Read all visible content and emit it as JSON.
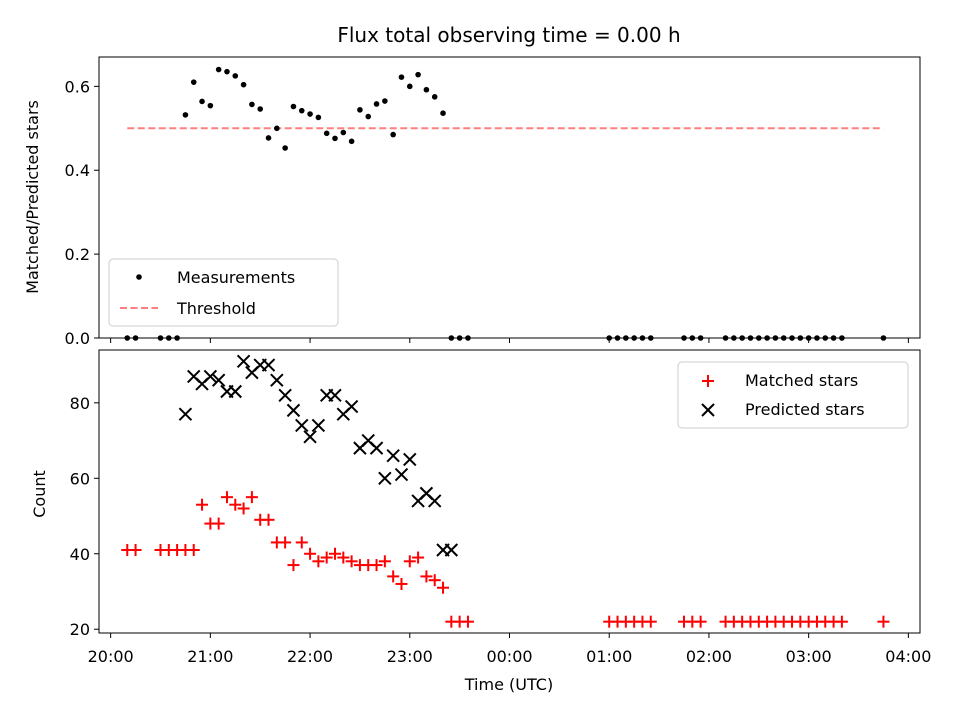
{
  "chart_data": [
    {
      "type": "scatter",
      "title": "Flux total observing time = 0.00 h",
      "xlabel": "",
      "ylabel": "Matched/Predicted stars",
      "ylim": [
        0,
        0.67
      ],
      "yticks": [
        0.0,
        0.2,
        0.4,
        0.6
      ],
      "ytick_labels": [
        "0.0",
        "0.2",
        "0.4",
        "0.6"
      ],
      "grid": false,
      "legend_position": "bottom-left",
      "threshold": {
        "name": "Threshold",
        "value": 0.5,
        "x_start": "20:10",
        "x_end": "03:45",
        "color": "#ff7f7f"
      },
      "series": [
        {
          "name": "Measurements",
          "color": "#000000",
          "x": [
            "20:10",
            "20:15",
            "20:30",
            "20:35",
            "20:40",
            "20:45",
            "20:50",
            "20:55",
            "21:00",
            "21:05",
            "21:10",
            "21:15",
            "21:20",
            "21:25",
            "21:30",
            "21:35",
            "21:40",
            "21:45",
            "21:50",
            "21:55",
            "22:00",
            "22:05",
            "22:10",
            "22:15",
            "22:20",
            "22:25",
            "22:30",
            "22:35",
            "22:40",
            "22:45",
            "22:50",
            "22:55",
            "23:00",
            "23:05",
            "23:10",
            "23:15",
            "23:20",
            "23:25",
            "23:30",
            "23:35",
            "01:00",
            "01:05",
            "01:10",
            "01:15",
            "01:20",
            "01:25",
            "01:45",
            "01:50",
            "01:55",
            "02:10",
            "02:15",
            "02:20",
            "02:25",
            "02:30",
            "02:35",
            "02:40",
            "02:45",
            "02:50",
            "02:55",
            "03:00",
            "03:05",
            "03:10",
            "03:15",
            "03:20",
            "03:45"
          ],
          "y": [
            0,
            0,
            0,
            0,
            0,
            0.532,
            0.61,
            0.564,
            0.554,
            0.64,
            0.635,
            0.625,
            0.604,
            0.557,
            0.546,
            0.477,
            0.5,
            0.453,
            0.552,
            0.542,
            0.534,
            0.526,
            0.488,
            0.476,
            0.49,
            0.469,
            0.544,
            0.528,
            0.558,
            0.565,
            0.485,
            0.622,
            0.6,
            0.628,
            0.592,
            0.575,
            0.536,
            0,
            0,
            0,
            0,
            0,
            0,
            0,
            0,
            0,
            0,
            0,
            0,
            0,
            0,
            0,
            0,
            0,
            0,
            0,
            0,
            0,
            0,
            0,
            0,
            0,
            0,
            0,
            0
          ]
        }
      ]
    },
    {
      "type": "scatter",
      "title": "",
      "xlabel": "Time (UTC)",
      "ylabel": "Count",
      "ylim": [
        19,
        94
      ],
      "yticks": [
        20,
        40,
        60,
        80
      ],
      "ytick_labels": [
        "20",
        "40",
        "60",
        "80"
      ],
      "x_axis": {
        "type": "time",
        "start": "19:53",
        "end": "04:07",
        "ticks": [
          "20:00",
          "21:00",
          "22:00",
          "23:00",
          "00:00",
          "01:00",
          "02:00",
          "03:00",
          "04:00"
        ]
      },
      "grid": false,
      "legend_position": "top-right",
      "series": [
        {
          "name": "Matched stars",
          "marker": "plus",
          "color": "#ff0000",
          "x": [
            "20:10",
            "20:15",
            "20:30",
            "20:35",
            "20:40",
            "20:45",
            "20:50",
            "20:55",
            "21:00",
            "21:05",
            "21:10",
            "21:15",
            "21:20",
            "21:25",
            "21:30",
            "21:35",
            "21:40",
            "21:45",
            "21:50",
            "21:55",
            "22:00",
            "22:05",
            "22:10",
            "22:15",
            "22:20",
            "22:25",
            "22:30",
            "22:35",
            "22:40",
            "22:45",
            "22:50",
            "22:55",
            "23:00",
            "23:05",
            "23:10",
            "23:15",
            "23:20",
            "23:25",
            "23:30",
            "23:35",
            "01:00",
            "01:05",
            "01:10",
            "01:15",
            "01:20",
            "01:25",
            "01:45",
            "01:50",
            "01:55",
            "02:10",
            "02:15",
            "02:20",
            "02:25",
            "02:30",
            "02:35",
            "02:40",
            "02:45",
            "02:50",
            "02:55",
            "03:00",
            "03:05",
            "03:10",
            "03:15",
            "03:20",
            "03:45"
          ],
          "y": [
            41,
            41,
            41,
            41,
            41,
            41,
            41,
            53,
            48,
            48,
            55,
            53,
            52,
            55,
            49,
            49,
            43,
            43,
            37,
            43,
            40,
            38,
            39,
            40,
            39,
            38,
            37,
            37,
            37,
            38,
            34,
            32,
            38,
            39,
            34,
            33,
            31,
            22,
            22,
            22,
            22,
            22,
            22,
            22,
            22,
            22,
            22,
            22,
            22,
            22,
            22,
            22,
            22,
            22,
            22,
            22,
            22,
            22,
            22,
            22,
            22,
            22,
            22,
            22,
            22
          ]
        },
        {
          "name": "Predicted stars",
          "marker": "x",
          "color": "#000000",
          "x": [
            "20:45",
            "20:50",
            "20:55",
            "21:00",
            "21:05",
            "21:10",
            "21:15",
            "21:20",
            "21:25",
            "21:30",
            "21:35",
            "21:40",
            "21:45",
            "21:50",
            "21:55",
            "22:00",
            "22:05",
            "22:10",
            "22:15",
            "22:20",
            "22:25",
            "22:30",
            "22:35",
            "22:40",
            "22:45",
            "22:50",
            "22:55",
            "23:00",
            "23:05",
            "23:10",
            "23:15",
            "23:20",
            "23:25"
          ],
          "y": [
            77,
            87,
            85,
            87,
            86,
            83,
            83,
            91,
            88,
            90,
            90,
            86,
            82,
            78,
            74,
            71,
            74,
            82,
            82,
            77,
            79,
            68,
            70,
            68,
            60,
            66,
            61,
            65,
            54,
            56,
            54,
            41,
            41
          ]
        }
      ]
    }
  ]
}
